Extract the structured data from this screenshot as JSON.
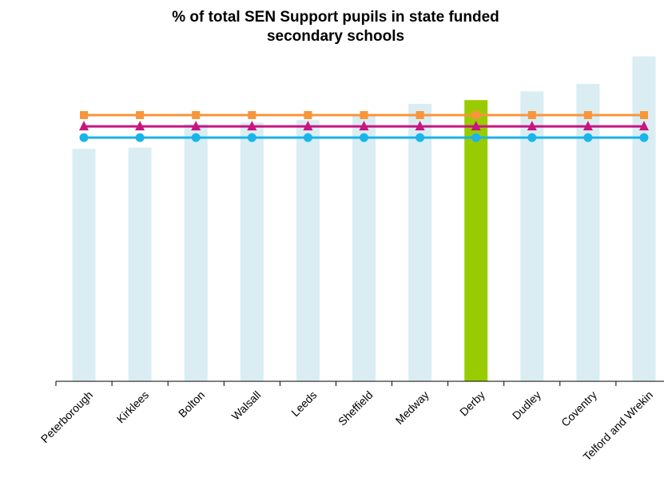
{
  "chart_data": {
    "type": "bar",
    "title_lines": [
      "% of total SEN Support pupils in state funded",
      "secondary schools"
    ],
    "categories": [
      "Peterborough",
      "Kirklees",
      "Bolton",
      "Walsall",
      "Leeds",
      "Sheffield",
      "Medway",
      "Derby",
      "Dudley",
      "Coventry",
      "Telford and Wrekin"
    ],
    "values": [
      9.3,
      9.35,
      10.3,
      10.35,
      10.45,
      10.65,
      11.1,
      11.25,
      11.6,
      11.9,
      13.0
    ],
    "highlight_category": "Derby",
    "ylim": [
      0,
      13.4
    ],
    "series": [
      {
        "type": "line",
        "marker": "square",
        "color": "#f7963b",
        "value": 10.65
      },
      {
        "type": "line",
        "marker": "triangle",
        "color": "#c8157f",
        "value": 10.2
      },
      {
        "type": "line",
        "marker": "circle",
        "color": "#19b4ea",
        "value": 9.75
      }
    ],
    "colors": {
      "bar": "#daedf3",
      "highlight": "#99cc00"
    },
    "grid": false,
    "legend": "none"
  }
}
